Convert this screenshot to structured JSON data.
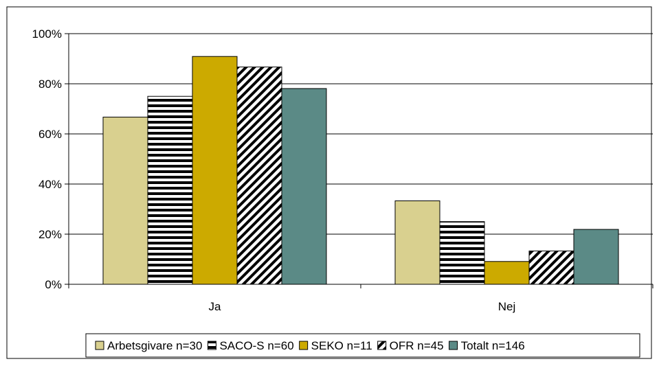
{
  "chart_data": {
    "type": "bar",
    "categories": [
      "Ja",
      "Nej"
    ],
    "series": [
      {
        "name": "Arbetsgivare n=30",
        "values": [
          66.7,
          33.3
        ],
        "color": "#d9d08f",
        "pattern": "solid"
      },
      {
        "name": "SACO-S n=60",
        "values": [
          75.0,
          25.0
        ],
        "color": "#ffffff",
        "pattern": "horizontal-stripes"
      },
      {
        "name": "SEKO n=11",
        "values": [
          90.9,
          9.1
        ],
        "color": "#ccaa00",
        "pattern": "solid"
      },
      {
        "name": "OFR n=45",
        "values": [
          86.7,
          13.3
        ],
        "color": "#ffffff",
        "pattern": "diagonal-stripes"
      },
      {
        "name": "Totalt n=146",
        "values": [
          78.1,
          21.9
        ],
        "color": "#5b8a86",
        "pattern": "solid"
      }
    ],
    "y_ticks": [
      "0%",
      "20%",
      "40%",
      "60%",
      "80%",
      "100%"
    ],
    "ylim": [
      0,
      100
    ],
    "grid": true,
    "legend_position": "bottom"
  }
}
